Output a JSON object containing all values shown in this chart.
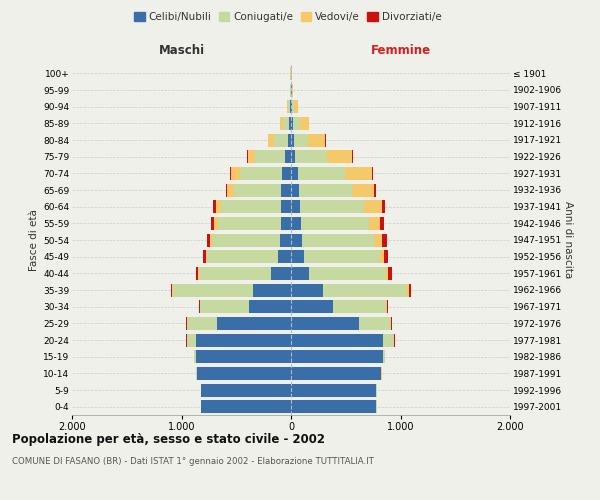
{
  "age_groups": [
    "0-4",
    "5-9",
    "10-14",
    "15-19",
    "20-24",
    "25-29",
    "30-34",
    "35-39",
    "40-44",
    "45-49",
    "50-54",
    "55-59",
    "60-64",
    "65-69",
    "70-74",
    "75-79",
    "80-84",
    "85-89",
    "90-94",
    "95-99",
    "100+"
  ],
  "birth_years": [
    "1997-2001",
    "1992-1996",
    "1987-1991",
    "1982-1986",
    "1977-1981",
    "1972-1976",
    "1967-1971",
    "1962-1966",
    "1957-1961",
    "1952-1956",
    "1947-1951",
    "1942-1946",
    "1937-1941",
    "1932-1936",
    "1927-1931",
    "1922-1926",
    "1917-1921",
    "1912-1916",
    "1907-1911",
    "1902-1906",
    "≤ 1901"
  ],
  "male": {
    "celibe": [
      820,
      820,
      860,
      870,
      870,
      680,
      380,
      350,
      180,
      120,
      100,
      90,
      95,
      90,
      80,
      55,
      25,
      15,
      8,
      3,
      2
    ],
    "coniugato": [
      1,
      2,
      5,
      15,
      80,
      270,
      450,
      730,
      660,
      650,
      620,
      580,
      540,
      430,
      390,
      270,
      130,
      60,
      20,
      4,
      2
    ],
    "vedovo": [
      0,
      0,
      1,
      1,
      2,
      3,
      3,
      5,
      8,
      10,
      20,
      30,
      50,
      60,
      80,
      70,
      55,
      25,
      8,
      2,
      1
    ],
    "divorziato": [
      0,
      0,
      1,
      2,
      5,
      8,
      10,
      15,
      20,
      25,
      30,
      30,
      25,
      10,
      8,
      5,
      3,
      2,
      1,
      0,
      0
    ]
  },
  "female": {
    "nubile": [
      780,
      780,
      820,
      840,
      840,
      620,
      380,
      290,
      160,
      120,
      100,
      90,
      80,
      70,
      60,
      40,
      25,
      20,
      10,
      5,
      3
    ],
    "coniugata": [
      1,
      2,
      6,
      18,
      100,
      290,
      490,
      770,
      710,
      690,
      660,
      620,
      590,
      490,
      430,
      290,
      130,
      60,
      20,
      5,
      2
    ],
    "vedova": [
      0,
      0,
      1,
      2,
      3,
      6,
      8,
      15,
      20,
      40,
      70,
      100,
      160,
      200,
      250,
      230,
      160,
      80,
      30,
      5,
      2
    ],
    "divorziata": [
      0,
      0,
      1,
      2,
      6,
      10,
      12,
      20,
      30,
      35,
      45,
      40,
      30,
      15,
      10,
      6,
      3,
      2,
      1,
      0,
      0
    ]
  },
  "colors": {
    "celibe_nubile": "#3a6ea8",
    "coniugato": "#c5d9a0",
    "vedovo": "#f5c96a",
    "divorziato": "#cc1111"
  },
  "title": "Popolazione per età, sesso e stato civile - 2002",
  "subtitle": "COMUNE DI FASANO (BR) - Dati ISTAT 1° gennaio 2002 - Elaborazione TUTTITALIA.IT",
  "xlabel_left": "Maschi",
  "xlabel_right": "Femmine",
  "ylabel_left": "Fasce di età",
  "ylabel_right": "Anni di nascita",
  "xlim": 2000,
  "background_color": "#f0f0eb"
}
